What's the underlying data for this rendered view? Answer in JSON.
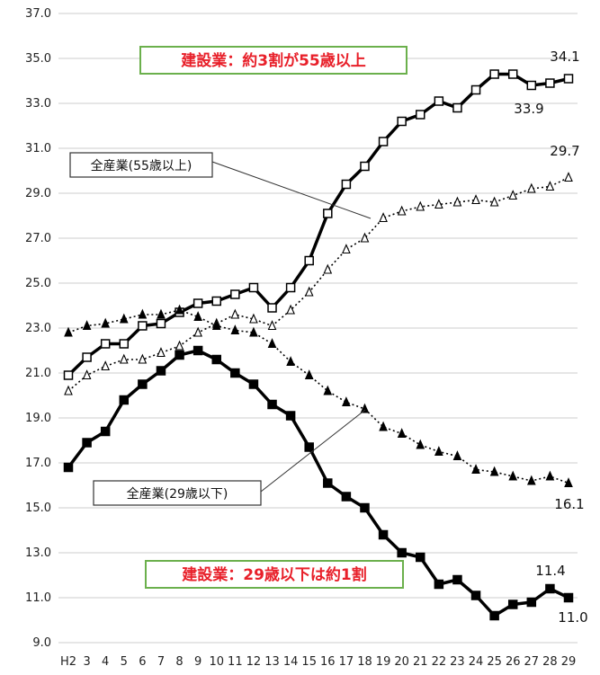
{
  "chart_data": {
    "type": "line",
    "x": [
      "H2",
      "3",
      "4",
      "5",
      "6",
      "7",
      "8",
      "9",
      "10",
      "11",
      "12",
      "13",
      "14",
      "15",
      "16",
      "17",
      "18",
      "19",
      "20",
      "21",
      "22",
      "23",
      "24",
      "25",
      "26",
      "27",
      "28",
      "29"
    ],
    "ylim": [
      9.0,
      37.0
    ],
    "yticks": [
      "9.0",
      "11.0",
      "13.0",
      "15.0",
      "17.0",
      "19.0",
      "21.0",
      "23.0",
      "25.0",
      "27.0",
      "29.0",
      "31.0",
      "33.0",
      "35.0",
      "37.0"
    ],
    "grid": true,
    "series": [
      {
        "style": "solid-open-square",
        "color": "#000000",
        "values": [
          20.9,
          21.7,
          22.3,
          22.3,
          23.1,
          23.2,
          23.7,
          24.1,
          24.2,
          24.5,
          24.8,
          23.9,
          24.8,
          26.0,
          28.1,
          29.4,
          30.2,
          31.3,
          32.2,
          32.5,
          33.1,
          32.8,
          33.6,
          34.3,
          34.3,
          33.8,
          33.9,
          34.1
        ]
      },
      {
        "style": "dotted-open-triangle",
        "color": "#000000",
        "values": [
          20.2,
          20.9,
          21.3,
          21.6,
          21.6,
          21.9,
          22.2,
          22.8,
          23.2,
          23.6,
          23.4,
          23.1,
          23.8,
          24.6,
          25.6,
          26.5,
          27.0,
          27.9,
          28.2,
          28.4,
          28.5,
          28.6,
          28.7,
          28.6,
          28.9,
          29.2,
          29.3,
          29.7
        ]
      },
      {
        "style": "dotted-filled-triangle",
        "color": "#000000",
        "values": [
          22.8,
          23.1,
          23.2,
          23.4,
          23.6,
          23.6,
          23.8,
          23.5,
          23.1,
          22.9,
          22.8,
          22.3,
          21.5,
          20.9,
          20.2,
          19.7,
          19.4,
          18.6,
          18.3,
          17.8,
          17.5,
          17.3,
          16.7,
          16.6,
          16.4,
          16.2,
          16.4,
          16.1
        ]
      },
      {
        "style": "solid-filled-square",
        "color": "#000000",
        "values": [
          16.8,
          17.9,
          18.4,
          19.8,
          20.5,
          21.1,
          21.8,
          22.0,
          21.6,
          21.0,
          20.5,
          19.6,
          19.1,
          17.7,
          16.1,
          15.5,
          15.0,
          13.8,
          13.0,
          12.8,
          11.6,
          11.8,
          11.1,
          10.2,
          10.7,
          10.8,
          11.4,
          11.0
        ]
      }
    ],
    "end_labels": {
      "s0_last": "34.1",
      "s0_second_last": "33.9",
      "s1_last": "29.7",
      "s2_last": "16.1",
      "s3_second_last": "11.4",
      "s3_last": "11.0"
    },
    "annotations": {
      "construction_55": "建設業：約3割が55歳以上",
      "construction_29": "建設業：29歳以下は約1割",
      "all_55": "全産業(55歳以上)",
      "all_29": "全産業(29歳以下)"
    },
    "colors": {
      "annotation_red_text": "#e8202a",
      "annotation_green_border": "#6bb04c"
    }
  }
}
